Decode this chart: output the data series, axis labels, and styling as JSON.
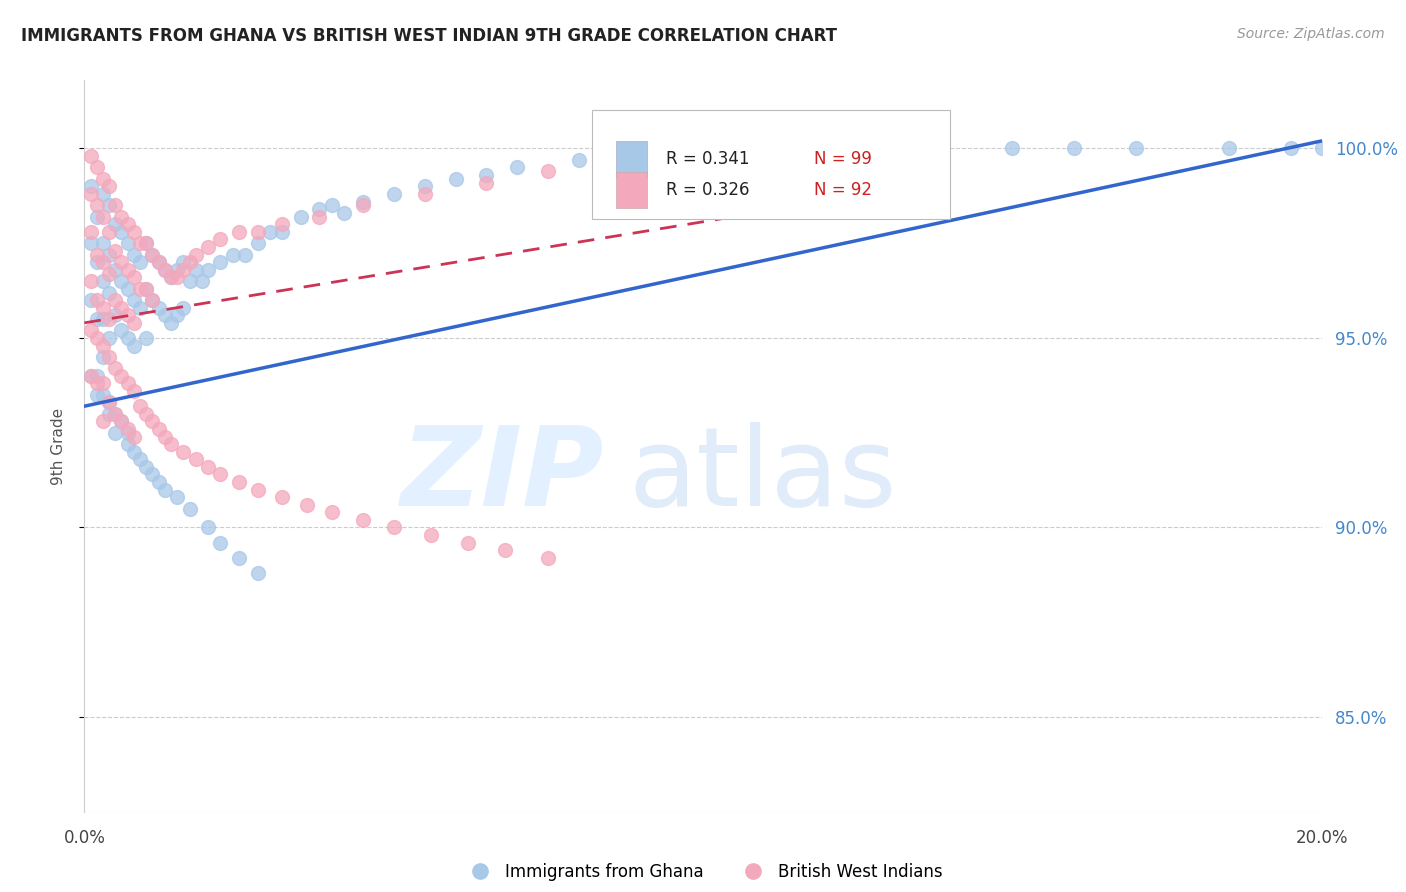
{
  "title": "IMMIGRANTS FROM GHANA VS BRITISH WEST INDIAN 9TH GRADE CORRELATION CHART",
  "source": "Source: ZipAtlas.com",
  "ylabel": "9th Grade",
  "y_ticks": [
    "85.0%",
    "90.0%",
    "95.0%",
    "100.0%"
  ],
  "y_tick_vals": [
    0.85,
    0.9,
    0.95,
    1.0
  ],
  "x_min": 0.0,
  "x_max": 0.2,
  "y_min": 0.825,
  "y_max": 1.018,
  "legend_r_blue": "R = 0.341",
  "legend_n_blue": "N = 99",
  "legend_r_pink": "R = 0.326",
  "legend_n_pink": "N = 92",
  "blue_color": "#a8c8e8",
  "pink_color": "#f4a8bc",
  "blue_line_color": "#3366cc",
  "pink_line_color": "#cc3355",
  "blue_line_x": [
    0.0,
    0.2
  ],
  "blue_line_y": [
    0.932,
    1.002
  ],
  "pink_line_x": [
    0.0,
    0.105
  ],
  "pink_line_y": [
    0.954,
    0.982
  ],
  "blue_scatter_x": [
    0.001,
    0.001,
    0.001,
    0.002,
    0.002,
    0.002,
    0.003,
    0.003,
    0.003,
    0.003,
    0.003,
    0.004,
    0.004,
    0.004,
    0.004,
    0.005,
    0.005,
    0.005,
    0.006,
    0.006,
    0.006,
    0.007,
    0.007,
    0.007,
    0.008,
    0.008,
    0.008,
    0.009,
    0.009,
    0.01,
    0.01,
    0.01,
    0.011,
    0.011,
    0.012,
    0.012,
    0.013,
    0.013,
    0.014,
    0.014,
    0.015,
    0.015,
    0.016,
    0.016,
    0.017,
    0.018,
    0.019,
    0.02,
    0.022,
    0.024,
    0.026,
    0.028,
    0.03,
    0.032,
    0.035,
    0.038,
    0.04,
    0.042,
    0.045,
    0.05,
    0.055,
    0.06,
    0.065,
    0.07,
    0.08,
    0.09,
    0.1,
    0.11,
    0.12,
    0.135,
    0.15,
    0.16,
    0.17,
    0.185,
    0.195,
    0.2,
    0.001,
    0.002,
    0.002,
    0.003,
    0.004,
    0.004,
    0.005,
    0.005,
    0.006,
    0.007,
    0.007,
    0.008,
    0.009,
    0.01,
    0.011,
    0.012,
    0.013,
    0.015,
    0.017,
    0.02,
    0.022,
    0.025,
    0.028
  ],
  "blue_scatter_y": [
    0.99,
    0.975,
    0.96,
    0.982,
    0.97,
    0.955,
    0.988,
    0.975,
    0.965,
    0.955,
    0.945,
    0.985,
    0.972,
    0.962,
    0.95,
    0.98,
    0.968,
    0.956,
    0.978,
    0.965,
    0.952,
    0.975,
    0.963,
    0.95,
    0.972,
    0.96,
    0.948,
    0.97,
    0.958,
    0.975,
    0.963,
    0.95,
    0.972,
    0.96,
    0.97,
    0.958,
    0.968,
    0.956,
    0.966,
    0.954,
    0.968,
    0.956,
    0.97,
    0.958,
    0.965,
    0.968,
    0.965,
    0.968,
    0.97,
    0.972,
    0.972,
    0.975,
    0.978,
    0.978,
    0.982,
    0.984,
    0.985,
    0.983,
    0.986,
    0.988,
    0.99,
    0.992,
    0.993,
    0.995,
    0.997,
    0.998,
    0.999,
    0.999,
    1.0,
    1.0,
    1.0,
    1.0,
    1.0,
    1.0,
    1.0,
    1.0,
    0.94,
    0.94,
    0.935,
    0.935,
    0.933,
    0.93,
    0.93,
    0.925,
    0.928,
    0.925,
    0.922,
    0.92,
    0.918,
    0.916,
    0.914,
    0.912,
    0.91,
    0.908,
    0.905,
    0.9,
    0.896,
    0.892,
    0.888
  ],
  "pink_scatter_x": [
    0.001,
    0.001,
    0.001,
    0.001,
    0.002,
    0.002,
    0.002,
    0.002,
    0.003,
    0.003,
    0.003,
    0.003,
    0.004,
    0.004,
    0.004,
    0.004,
    0.005,
    0.005,
    0.005,
    0.006,
    0.006,
    0.006,
    0.007,
    0.007,
    0.007,
    0.008,
    0.008,
    0.008,
    0.009,
    0.009,
    0.01,
    0.01,
    0.011,
    0.011,
    0.012,
    0.013,
    0.014,
    0.015,
    0.016,
    0.017,
    0.018,
    0.02,
    0.022,
    0.025,
    0.028,
    0.032,
    0.038,
    0.045,
    0.055,
    0.065,
    0.075,
    0.085,
    0.095,
    0.105,
    0.001,
    0.001,
    0.002,
    0.002,
    0.003,
    0.003,
    0.003,
    0.004,
    0.004,
    0.005,
    0.005,
    0.006,
    0.006,
    0.007,
    0.007,
    0.008,
    0.008,
    0.009,
    0.01,
    0.011,
    0.012,
    0.013,
    0.014,
    0.016,
    0.018,
    0.02,
    0.022,
    0.025,
    0.028,
    0.032,
    0.036,
    0.04,
    0.045,
    0.05,
    0.056,
    0.062,
    0.068,
    0.075
  ],
  "pink_scatter_y": [
    0.998,
    0.988,
    0.978,
    0.965,
    0.995,
    0.985,
    0.972,
    0.96,
    0.992,
    0.982,
    0.97,
    0.958,
    0.99,
    0.978,
    0.967,
    0.955,
    0.985,
    0.973,
    0.96,
    0.982,
    0.97,
    0.958,
    0.98,
    0.968,
    0.956,
    0.978,
    0.966,
    0.954,
    0.975,
    0.963,
    0.975,
    0.963,
    0.972,
    0.96,
    0.97,
    0.968,
    0.966,
    0.966,
    0.968,
    0.97,
    0.972,
    0.974,
    0.976,
    0.978,
    0.978,
    0.98,
    0.982,
    0.985,
    0.988,
    0.991,
    0.994,
    0.996,
    0.998,
    0.999,
    0.952,
    0.94,
    0.95,
    0.938,
    0.948,
    0.938,
    0.928,
    0.945,
    0.933,
    0.942,
    0.93,
    0.94,
    0.928,
    0.938,
    0.926,
    0.936,
    0.924,
    0.932,
    0.93,
    0.928,
    0.926,
    0.924,
    0.922,
    0.92,
    0.918,
    0.916,
    0.914,
    0.912,
    0.91,
    0.908,
    0.906,
    0.904,
    0.902,
    0.9,
    0.898,
    0.896,
    0.894,
    0.892
  ]
}
